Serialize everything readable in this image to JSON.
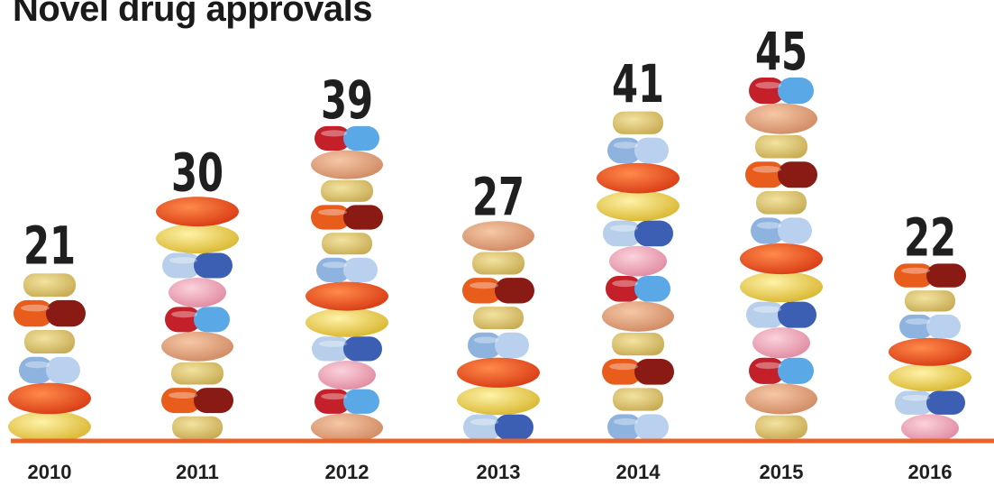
{
  "title": "Novel drug approvals",
  "colors": {
    "baseline": "#e8622a",
    "value_text": "#1f1f1f",
    "year_text": "#1f1f1f"
  },
  "chart_data": {
    "type": "bar",
    "title": "Novel drug approvals",
    "categories": [
      "2010",
      "2011",
      "2012",
      "2013",
      "2014",
      "2015",
      "2016"
    ],
    "values": [
      21,
      30,
      39,
      27,
      41,
      45,
      22
    ],
    "series": [
      {
        "values": [
          21,
          30,
          39,
          27,
          41,
          45,
          22
        ]
      }
    ],
    "ylim": [
      0,
      45
    ],
    "grid": false,
    "legend": "none",
    "bar_style": "stacked pills"
  }
}
